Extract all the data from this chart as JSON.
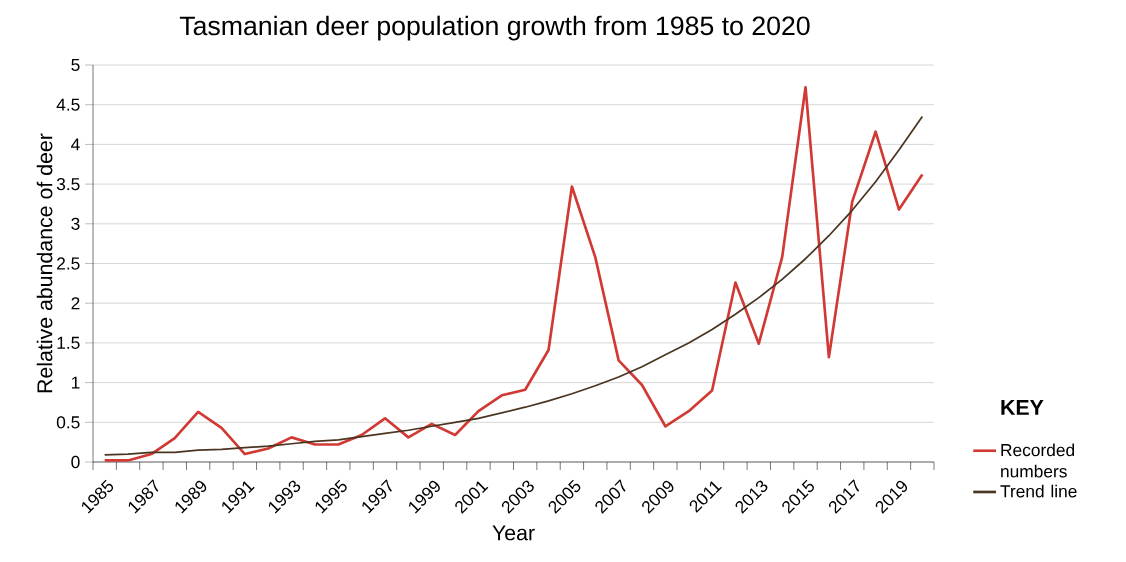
{
  "chart_data": {
    "type": "line",
    "title": "Tasmanian deer population growth from 1985 to 2020",
    "xlabel": "Year",
    "ylabel": "Relative abundance of deer",
    "legend_title": "KEY",
    "categories": [
      "1985",
      null,
      "1987",
      null,
      "1989",
      null,
      "1991",
      null,
      "1993",
      null,
      "1995",
      null,
      "1997",
      null,
      "1999",
      null,
      "2001",
      null,
      "2003",
      null,
      "2005",
      null,
      "2007",
      null,
      "2009",
      null,
      "2011",
      null,
      "2013",
      null,
      "2015",
      null,
      "2017",
      null,
      "2019",
      null
    ],
    "series": [
      {
        "name": "Recorded numbers",
        "color": "#d13a34",
        "values": [
          0.02,
          0.02,
          0.1,
          0.3,
          0.63,
          0.43,
          0.1,
          0.17,
          0.31,
          0.22,
          0.22,
          0.34,
          0.55,
          0.31,
          0.48,
          0.34,
          0.64,
          0.84,
          0.91,
          1.41,
          3.47,
          2.58,
          1.28,
          0.97,
          0.45,
          0.64,
          0.9,
          2.26,
          1.49,
          2.58,
          4.72,
          1.32,
          3.28,
          4.16,
          3.18,
          3.62
        ]
      },
      {
        "name": "Trend line",
        "type": "line",
        "color": "#4a3520",
        "values": [
          0.09,
          0.1,
          0.12,
          0.12,
          0.15,
          0.16,
          0.18,
          0.2,
          0.23,
          0.26,
          0.28,
          0.32,
          0.36,
          0.4,
          0.45,
          0.5,
          0.55,
          0.62,
          0.69,
          0.77,
          0.86,
          0.96,
          1.07,
          1.2,
          1.35,
          1.5,
          1.67,
          1.86,
          2.07,
          2.3,
          2.56,
          2.85,
          3.17,
          3.53,
          3.93,
          4.35
        ]
      }
    ],
    "ylim": [
      0,
      5
    ],
    "yticks": [
      0,
      0.5,
      1,
      1.5,
      2,
      2.5,
      3,
      3.5,
      4,
      4.5,
      5
    ],
    "grid": "y",
    "legend": "right",
    "marker": "none"
  }
}
